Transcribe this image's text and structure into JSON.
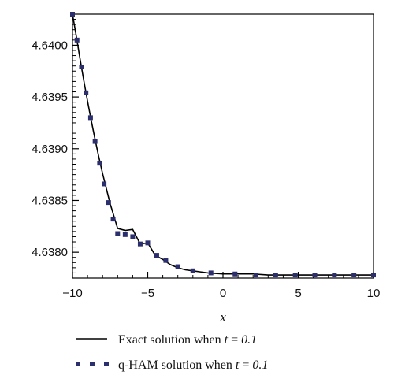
{
  "chart_data": {
    "type": "line",
    "xlabel": "x",
    "ylabel": "",
    "title": "",
    "xlim": [
      -10,
      10
    ],
    "ylim": [
      4.63775,
      4.6403
    ],
    "x_ticks": [
      -10,
      -5,
      0,
      5,
      10
    ],
    "x_tick_labels": [
      "−10",
      "−5",
      "0",
      "5",
      "10"
    ],
    "y_ticks": [
      4.638,
      4.6385,
      4.639,
      4.6395,
      4.64
    ],
    "y_tick_labels": [
      "4.6380",
      "4.6385",
      "4.6390",
      "4.6395",
      "4.6400"
    ],
    "grid": false,
    "legend_position": "below",
    "series": [
      {
        "name": "Exact solution when t = 0.1",
        "style": "solid",
        "color": "#000000",
        "x": [
          -10,
          -9.75,
          -9.5,
          -9.25,
          -9,
          -8.75,
          -8.5,
          -8.25,
          -8,
          -7.5,
          -7,
          -6.5,
          -6,
          -5.5,
          -5,
          -4.5,
          -4,
          -3.5,
          -3,
          -2.5,
          -2,
          -1.5,
          -1,
          0,
          1,
          2,
          3,
          4,
          5,
          6,
          7,
          8,
          9,
          10
        ],
        "y": [
          4.6403,
          4.64009,
          4.63987,
          4.63966,
          4.63946,
          4.63927,
          4.63909,
          4.63892,
          4.63876,
          4.63847,
          4.63823,
          4.63821,
          4.63822,
          4.63808,
          4.63809,
          4.63797,
          4.63793,
          4.63788,
          4.63785,
          4.63783,
          4.63782,
          4.63781,
          4.6378,
          4.63779,
          4.63779,
          4.63779,
          4.63778,
          4.63778,
          4.63778,
          4.63778,
          4.63778,
          4.63778,
          4.63778,
          4.63778
        ]
      },
      {
        "name": "q-HAM solution when t = 0.1",
        "style": "dotted-markers",
        "color": "#2c2f6e",
        "x": [
          -10,
          -9.7,
          -9.4,
          -9.1,
          -8.8,
          -8.5,
          -8.2,
          -7.9,
          -7.6,
          -7.3,
          -7.0,
          -6.5,
          -6.0,
          -5.5,
          -5.0,
          -4.4,
          -3.8,
          -3.0,
          -2.0,
          -0.8,
          0.8,
          2.2,
          3.5,
          4.8,
          6.1,
          7.4,
          8.7,
          10
        ],
        "y": [
          4.6403,
          4.64005,
          4.63979,
          4.63954,
          4.6393,
          4.63907,
          4.63886,
          4.63866,
          4.63848,
          4.63832,
          4.63818,
          4.63817,
          4.63815,
          4.63808,
          4.63809,
          4.63797,
          4.63792,
          4.63786,
          4.63782,
          4.6378,
          4.63779,
          4.63778,
          4.63778,
          4.63778,
          4.63778,
          4.63778,
          4.63778,
          4.63778
        ]
      }
    ],
    "legend": [
      {
        "prefix": "Exact solution when ",
        "var": "t",
        "eq": " = ",
        "val": "0.1"
      },
      {
        "prefix": "q-HAM solution when ",
        "var": "t",
        "eq": " = ",
        "val": "0.1"
      }
    ]
  }
}
